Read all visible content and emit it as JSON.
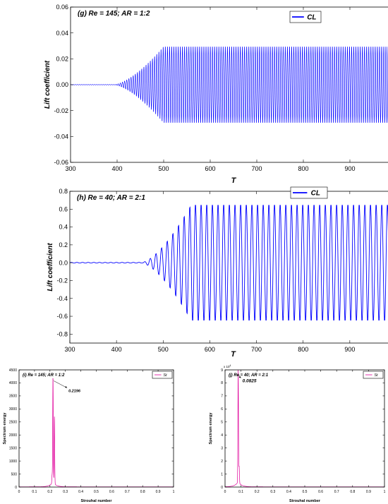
{
  "chart_data": [
    {
      "type": "line",
      "panel_label": "(g) Re = 145; AR = 1:2",
      "xlabel": "T",
      "ylabel": "Lift coefficient",
      "xlim": [
        300,
        1000
      ],
      "ylim": [
        -0.06,
        0.06
      ],
      "xticks": [
        300,
        400,
        500,
        600,
        700,
        800,
        900,
        1000
      ],
      "yticks": [
        -0.06,
        -0.04,
        -0.02,
        0,
        0.02,
        0.04,
        0.06
      ],
      "grid": false,
      "legend_position": "top-right",
      "series": [
        {
          "name": "CL",
          "color": "#0000ff",
          "signal": "growing-oscillation",
          "onset_T": 395,
          "saturation_T": 500,
          "amplitude": 0.03,
          "period_T": 4.6
        }
      ]
    },
    {
      "type": "line",
      "panel_label": "(h) Re = 40; AR = 2:1",
      "xlabel": "T",
      "ylabel": "Lift coefficient",
      "xlim": [
        300,
        1000
      ],
      "ylim": [
        -0.9,
        0.8
      ],
      "xticks": [
        300,
        400,
        500,
        600,
        700,
        800,
        900,
        1000
      ],
      "yticks": [
        -0.8,
        -0.6,
        -0.4,
        -0.2,
        0,
        0.2,
        0.4,
        0.6,
        0.8
      ],
      "grid": false,
      "legend_position": "top-right",
      "series": [
        {
          "name": "CL",
          "color": "#0000ff",
          "signal": "growing-oscillation",
          "onset_T": 455,
          "saturation_T": 560,
          "amplitude": 0.66,
          "period_T": 12.1
        }
      ]
    },
    {
      "type": "line",
      "panel_label": "(i) Re = 145; AR = 1:2",
      "xlabel": "Strouhal number",
      "ylabel": "Spectrum energy",
      "xlim": [
        0,
        1
      ],
      "ylim": [
        0,
        4500
      ],
      "xticks": [
        0,
        0.1,
        0.2,
        0.3,
        0.4,
        0.5,
        0.6,
        0.7,
        0.8,
        0.9,
        1
      ],
      "yticks": [
        0,
        500,
        1000,
        1500,
        2000,
        2500,
        3000,
        3500,
        4000,
        4500
      ],
      "grid": false,
      "legend_position": "top-right",
      "series": [
        {
          "name": "St",
          "color": "#e0009a",
          "peaks": [
            {
              "x": 0.2196,
              "y": 4080
            },
            {
              "x": 0.229,
              "y": 2600
            },
            {
              "x": 0.214,
              "y": 320
            }
          ]
        }
      ],
      "annotation": {
        "text": "0.2196",
        "x": 0.2196,
        "y": 4080
      }
    },
    {
      "type": "line",
      "panel_label": "(j) Re = 40; AR = 2:1",
      "xlabel": "Strouhal number",
      "ylabel": "Spectrum energy",
      "xlim": [
        0,
        1
      ],
      "ylim": [
        0,
        9
      ],
      "y_multiplier": "x 10",
      "y_multiplier_exp": "4",
      "xticks": [
        0,
        0.1,
        0.2,
        0.3,
        0.4,
        0.5,
        0.6,
        0.7,
        0.8,
        0.9,
        1
      ],
      "yticks": [
        0,
        1,
        2,
        3,
        4,
        5,
        6,
        7,
        8,
        9
      ],
      "grid": false,
      "legend_position": "top-right",
      "series": [
        {
          "name": "St",
          "color": "#e0009a",
          "peaks": [
            {
              "x": 0.0825,
              "y": 8.6
            },
            {
              "x": 0.0885,
              "y": 1.3
            }
          ]
        }
      ],
      "annotation": {
        "text": "0.0825",
        "x": 0.0825,
        "y": 8.6
      }
    }
  ]
}
